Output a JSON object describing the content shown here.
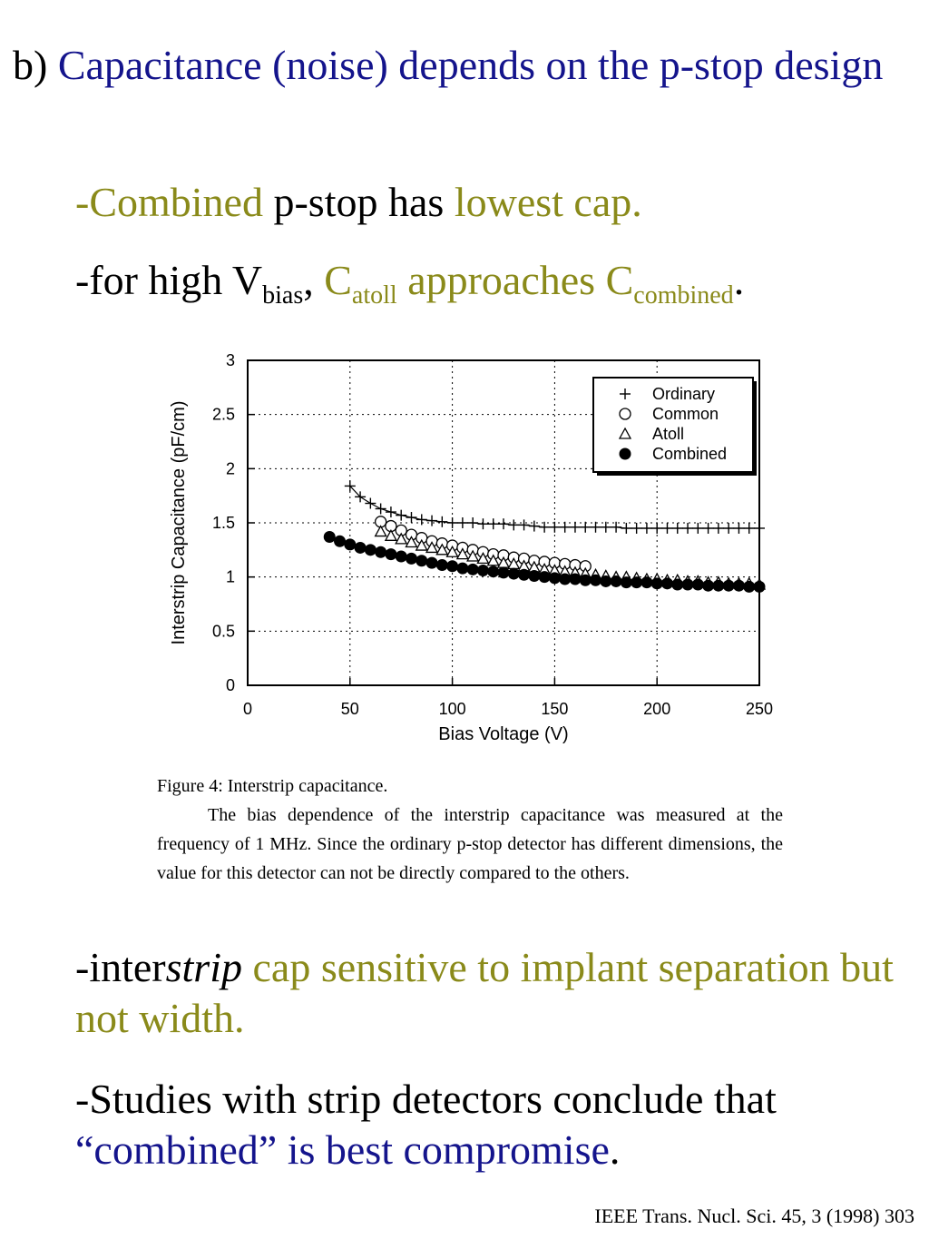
{
  "slide": {
    "title_prefix": "b) ",
    "title_main": "Capacitance (noise) depends on the p-stop design",
    "bullet1": {
      "part1": "-Combined",
      "part2": " p-stop has ",
      "part3": "lowest cap."
    },
    "bullet2": {
      "part1": "-for high V",
      "sub1": "bias",
      "part2": ", ",
      "part3": "C",
      "sub2": "atoll",
      "part4": " approaches C",
      "sub3": "combined",
      "part5": "."
    },
    "bullet3": {
      "part1": "-inter",
      "part2": "strip",
      "part3": " cap sensitive to implant separation but not width."
    },
    "bullet4": {
      "part1": "-Studies with strip detectors conclude that ",
      "part2": "“combined” is best compromise",
      "part3": "."
    },
    "reference": "IEEE Trans. Nucl. Sci. 45, 3 (1998) 303"
  },
  "figure_caption": {
    "title": "Figure 4: Interstrip capacitance.",
    "text": "The bias dependence of the interstrip capacitance was measured at the frequency of 1 MHz.   Since the ordinary p-stop detector has different dimensions, the value for this detector can not be directly compared to the others."
  },
  "colors": {
    "navy": "#14148c",
    "olive": "#8a8a1a",
    "black": "#000000"
  },
  "chart_data": {
    "type": "scatter",
    "xlabel": "Bias Voltage (V)",
    "ylabel": "Interstrip Capacitance (pF/cm)",
    "xlim": [
      0,
      250
    ],
    "ylim": [
      0,
      3
    ],
    "xticks": [
      0,
      50,
      100,
      150,
      200,
      250
    ],
    "yticks": [
      0,
      0.5,
      1,
      1.5,
      2,
      2.5,
      3
    ],
    "grid": true,
    "legend_position": "top-right",
    "series": [
      {
        "name": "Ordinary",
        "marker": "plus",
        "x": [
          50,
          55,
          60,
          65,
          70,
          75,
          80,
          85,
          90,
          95,
          100,
          105,
          110,
          115,
          120,
          125,
          130,
          135,
          140,
          145,
          150,
          155,
          160,
          165,
          170,
          175,
          180,
          185,
          190,
          195,
          200,
          205,
          210,
          215,
          220,
          225,
          230,
          235,
          240,
          245,
          250
        ],
        "y": [
          1.84,
          1.74,
          1.68,
          1.63,
          1.6,
          1.57,
          1.55,
          1.53,
          1.52,
          1.51,
          1.5,
          1.5,
          1.5,
          1.49,
          1.49,
          1.49,
          1.48,
          1.48,
          1.47,
          1.46,
          1.46,
          1.46,
          1.46,
          1.46,
          1.46,
          1.46,
          1.46,
          1.45,
          1.45,
          1.45,
          1.45,
          1.45,
          1.45,
          1.45,
          1.45,
          1.45,
          1.45,
          1.45,
          1.45,
          1.45,
          1.45
        ]
      },
      {
        "name": "Common",
        "marker": "circle-open",
        "x": [
          65,
          70,
          75,
          80,
          85,
          90,
          95,
          100,
          105,
          110,
          115,
          120,
          125,
          130,
          135,
          140,
          145,
          150,
          155,
          160,
          165
        ],
        "y": [
          1.51,
          1.47,
          1.43,
          1.39,
          1.36,
          1.33,
          1.31,
          1.29,
          1.27,
          1.25,
          1.23,
          1.21,
          1.2,
          1.18,
          1.17,
          1.15,
          1.14,
          1.13,
          1.12,
          1.11,
          1.1
        ]
      },
      {
        "name": "Atoll",
        "marker": "triangle-open",
        "x": [
          65,
          70,
          75,
          80,
          85,
          90,
          95,
          100,
          105,
          110,
          115,
          120,
          125,
          130,
          135,
          140,
          145,
          150,
          155,
          160,
          165,
          170,
          175,
          180,
          185,
          190,
          195,
          200,
          205,
          210,
          215,
          220,
          225,
          230,
          235,
          240,
          245,
          250
        ],
        "y": [
          1.42,
          1.38,
          1.35,
          1.32,
          1.29,
          1.27,
          1.25,
          1.23,
          1.21,
          1.19,
          1.17,
          1.15,
          1.13,
          1.12,
          1.1,
          1.09,
          1.07,
          1.06,
          1.05,
          1.04,
          1.03,
          1.02,
          1.01,
          1.0,
          1.0,
          0.99,
          0.98,
          0.98,
          0.97,
          0.97,
          0.96,
          0.96,
          0.95,
          0.95,
          0.94,
          0.94,
          0.94,
          0.93
        ]
      },
      {
        "name": "Combined",
        "marker": "circle-filled",
        "x": [
          40,
          45,
          50,
          55,
          60,
          65,
          70,
          75,
          80,
          85,
          90,
          95,
          100,
          105,
          110,
          115,
          120,
          125,
          130,
          135,
          140,
          145,
          150,
          155,
          160,
          165,
          170,
          175,
          180,
          185,
          190,
          195,
          200,
          205,
          210,
          215,
          220,
          225,
          230,
          235,
          240,
          245,
          250
        ],
        "y": [
          1.37,
          1.33,
          1.3,
          1.27,
          1.25,
          1.23,
          1.21,
          1.19,
          1.17,
          1.15,
          1.13,
          1.11,
          1.1,
          1.08,
          1.07,
          1.06,
          1.05,
          1.04,
          1.03,
          1.02,
          1.01,
          1.0,
          0.99,
          0.98,
          0.98,
          0.97,
          0.97,
          0.96,
          0.96,
          0.95,
          0.95,
          0.95,
          0.94,
          0.94,
          0.93,
          0.93,
          0.93,
          0.92,
          0.92,
          0.92,
          0.92,
          0.91,
          0.91
        ]
      }
    ]
  }
}
